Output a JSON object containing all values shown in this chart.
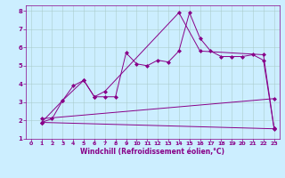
{
  "xlabel": "Windchill (Refroidissement éolien,°C)",
  "bg_color": "#cceeff",
  "line_color": "#880088",
  "xlim": [
    -0.5,
    23.5
  ],
  "ylim": [
    1,
    8.3
  ],
  "xticks": [
    0,
    1,
    2,
    3,
    4,
    5,
    6,
    7,
    8,
    9,
    10,
    11,
    12,
    13,
    14,
    15,
    16,
    17,
    18,
    19,
    20,
    21,
    22,
    23
  ],
  "yticks": [
    1,
    2,
    3,
    4,
    5,
    6,
    7,
    8
  ],
  "lines": [
    {
      "x": [
        1,
        2,
        3,
        4,
        5,
        6,
        7,
        8,
        9,
        10,
        11,
        12,
        13,
        14,
        15,
        16,
        17,
        18,
        19,
        20,
        21,
        22,
        23
      ],
      "y": [
        1.9,
        2.1,
        3.1,
        3.9,
        4.2,
        3.3,
        3.3,
        3.3,
        5.7,
        5.1,
        5.0,
        5.3,
        5.2,
        5.8,
        7.9,
        6.5,
        5.8,
        5.5,
        5.5,
        5.5,
        5.6,
        5.3,
        1.6
      ]
    },
    {
      "x": [
        1,
        3,
        5,
        6,
        7,
        14,
        16,
        22,
        23
      ],
      "y": [
        1.9,
        3.1,
        4.2,
        3.3,
        3.6,
        7.9,
        5.8,
        5.6,
        1.6
      ]
    },
    {
      "x": [
        1,
        23
      ],
      "y": [
        2.1,
        3.2
      ]
    },
    {
      "x": [
        1,
        23
      ],
      "y": [
        1.9,
        1.55
      ]
    }
  ]
}
